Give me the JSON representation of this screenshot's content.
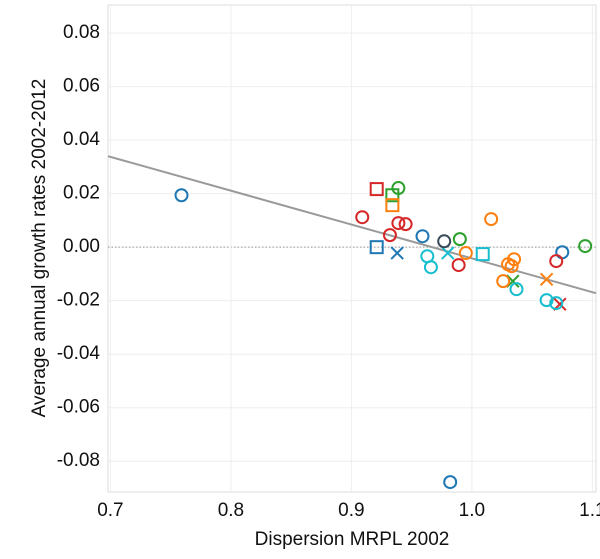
{
  "chart_data": {
    "type": "scatter",
    "x_label": "Dispersion MRPL 2002",
    "y_label": "Average annual growth rates 2002-2012",
    "xlim": [
      0.698,
      1.103
    ],
    "ylim": [
      -0.0915,
      0.0905
    ],
    "xticks": [
      0.7,
      0.8,
      0.9,
      {
        "value": 1.0,
        "label": "1.0"
      },
      1.1
    ],
    "yticks": [
      -0.08,
      -0.06,
      -0.04,
      -0.02,
      {
        "value": 0,
        "label": "0.00"
      },
      0.02,
      0.04,
      0.06,
      0.08
    ],
    "grid": true,
    "series": [
      {
        "color": "#1f77b4",
        "marker": "circle",
        "x": [
          0.759,
          0.959,
          0.982,
          1.075
        ],
        "values": [
          0.0194,
          0.0041,
          -0.0878,
          -0.0019
        ]
      },
      {
        "color": "#1f77b4",
        "marker": "square",
        "x": [
          0.921
        ],
        "values": [
          0.0
        ]
      },
      {
        "color": "#1f77b4",
        "marker": "x",
        "x": [
          0.938
        ],
        "values": [
          -0.0022
        ]
      },
      {
        "color": "#d62728",
        "marker": "circle",
        "x": [
          0.909,
          0.932,
          0.939,
          0.945,
          0.989,
          1.07
        ],
        "values": [
          0.0112,
          0.0045,
          0.009,
          0.0086,
          -0.0067,
          -0.0052
        ]
      },
      {
        "color": "#d62728",
        "marker": "square",
        "x": [
          0.921
        ],
        "values": [
          0.0217
        ]
      },
      {
        "color": "#d62728",
        "marker": "x",
        "x": [
          1.073
        ],
        "values": [
          -0.0213
        ]
      },
      {
        "color": "#2ca02c",
        "marker": "circle",
        "x": [
          0.939,
          0.99,
          1.094
        ],
        "values": [
          0.0221,
          0.003,
          0.0004
        ]
      },
      {
        "color": "#2ca02c",
        "marker": "square",
        "x": [
          0.934
        ],
        "values": [
          0.0194
        ]
      },
      {
        "color": "#2ca02c",
        "marker": "x",
        "x": [
          1.034
        ],
        "values": [
          -0.0127
        ]
      },
      {
        "color": "#ff7f0e",
        "marker": "circle",
        "x": [
          1.016,
          0.995,
          1.026,
          1.03,
          1.035,
          1.033
        ],
        "values": [
          0.0105,
          -0.0022,
          -0.0127,
          -0.0064,
          -0.0045,
          -0.0071
        ]
      },
      {
        "color": "#ff7f0e",
        "marker": "square",
        "x": [
          0.934
        ],
        "values": [
          0.0157
        ]
      },
      {
        "color": "#ff7f0e",
        "marker": "x",
        "x": [
          1.062
        ],
        "values": [
          -0.012
        ]
      },
      {
        "color": "#17becf",
        "marker": "circle",
        "x": [
          0.963,
          0.966,
          1.037,
          1.062,
          1.07
        ],
        "values": [
          -0.0034,
          -0.0075,
          -0.0157,
          -0.0198,
          -0.0209
        ]
      },
      {
        "color": "#17becf",
        "marker": "square",
        "x": [
          1.009
        ],
        "values": [
          -0.0026
        ]
      },
      {
        "color": "#17becf",
        "marker": "x",
        "x": [
          0.98
        ],
        "values": [
          -0.0022
        ]
      },
      {
        "color": "#3b4a5a",
        "marker": "circle",
        "x": [
          0.977
        ],
        "values": [
          0.0022
        ]
      }
    ],
    "trend": {
      "color": "#999999",
      "x": [
        0.698,
        1.103
      ],
      "values": [
        0.034,
        -0.0172
      ]
    }
  }
}
